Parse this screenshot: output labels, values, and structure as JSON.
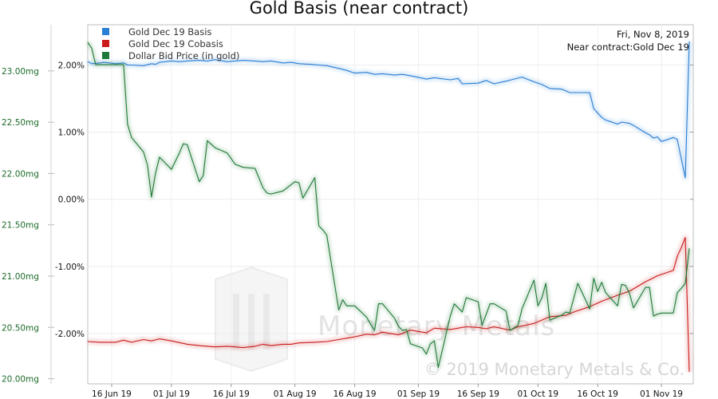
{
  "chart_data": {
    "type": "line",
    "title": "Gold Basis (near contract)",
    "date_label": "Fri, Nov 8, 2019",
    "contract_label": "Near contract:Gold Dec 19",
    "watermark": "Monetary Metals",
    "copyright": "© 2019 Monetary Metals & Co.",
    "x_axis": {
      "range": [
        "2019-06-10",
        "2019-11-09"
      ],
      "ticks": [
        "16 Jun 19",
        "01 Jul 19",
        "16 Jul 19",
        "01 Aug 19",
        "16 Aug 19",
        "01 Sep 19",
        "16 Sep 19",
        "01 Oct 19",
        "16 Oct 19",
        "01 Nov 19"
      ],
      "tick_dates": [
        "2019-06-16",
        "2019-07-01",
        "2019-07-16",
        "2019-08-01",
        "2019-08-16",
        "2019-09-01",
        "2019-09-16",
        "2019-10-01",
        "2019-10-16",
        "2019-11-01"
      ]
    },
    "y_left": {
      "unit": "%",
      "range": [
        -2.75,
        2.6
      ],
      "ticks": [
        2.0,
        1.0,
        0.0,
        -1.0,
        -2.0
      ],
      "tick_labels": [
        "2.00%",
        "1.00%",
        "0.00%",
        "-1.00%",
        "-2.00%"
      ],
      "color": "#111111"
    },
    "y_right": {
      "unit": "mg",
      "range": [
        19.95,
        23.45
      ],
      "ticks": [
        23.0,
        22.5,
        22.0,
        21.5,
        21.0,
        20.5,
        20.0
      ],
      "tick_labels": [
        "23.00mg",
        "22.50mg",
        "22.00mg",
        "21.50mg",
        "21.00mg",
        "20.50mg",
        "20.00mg"
      ],
      "color": "#1d6b2a"
    },
    "grid": true,
    "legend_position": "top-left",
    "series": [
      {
        "name": "Gold Dec 19 Basis",
        "color": "#2a7fd4",
        "axis": "left",
        "points": [
          [
            "2019-06-10",
            2.05
          ],
          [
            "2019-06-11",
            2.02
          ],
          [
            "2019-06-13",
            2.03
          ],
          [
            "2019-06-14",
            2.04
          ],
          [
            "2019-06-17",
            2.02
          ],
          [
            "2019-06-19",
            2.03
          ],
          [
            "2019-06-20",
            2.0
          ],
          [
            "2019-06-21",
            2.0
          ],
          [
            "2019-06-24",
            1.99
          ],
          [
            "2019-06-26",
            2.02
          ],
          [
            "2019-06-27",
            2.01
          ],
          [
            "2019-06-28",
            2.04
          ],
          [
            "2019-07-01",
            2.06
          ],
          [
            "2019-07-03",
            2.05
          ],
          [
            "2019-07-05",
            2.06
          ],
          [
            "2019-07-08",
            2.07
          ],
          [
            "2019-07-10",
            2.06
          ],
          [
            "2019-07-12",
            2.08
          ],
          [
            "2019-07-15",
            2.05
          ],
          [
            "2019-07-17",
            2.06
          ],
          [
            "2019-07-19",
            2.07
          ],
          [
            "2019-07-22",
            2.06
          ],
          [
            "2019-07-24",
            2.05
          ],
          [
            "2019-07-26",
            2.06
          ],
          [
            "2019-07-29",
            2.03
          ],
          [
            "2019-07-31",
            2.04
          ],
          [
            "2019-08-02",
            2.02
          ],
          [
            "2019-08-05",
            2.01
          ],
          [
            "2019-08-07",
            2.0
          ],
          [
            "2019-08-09",
            1.99
          ],
          [
            "2019-08-12",
            1.95
          ],
          [
            "2019-08-14",
            1.92
          ],
          [
            "2019-08-16",
            1.88
          ],
          [
            "2019-08-19",
            1.89
          ],
          [
            "2019-08-21",
            1.86
          ],
          [
            "2019-08-23",
            1.87
          ],
          [
            "2019-08-26",
            1.85
          ],
          [
            "2019-08-28",
            1.86
          ],
          [
            "2019-08-30",
            1.84
          ],
          [
            "2019-09-03",
            1.79
          ],
          [
            "2019-09-05",
            1.81
          ],
          [
            "2019-09-09",
            1.78
          ],
          [
            "2019-09-11",
            1.8
          ],
          [
            "2019-09-12",
            1.72
          ],
          [
            "2019-09-16",
            1.73
          ],
          [
            "2019-09-18",
            1.77
          ],
          [
            "2019-09-20",
            1.72
          ],
          [
            "2019-09-23",
            1.76
          ],
          [
            "2019-09-25",
            1.79
          ],
          [
            "2019-09-27",
            1.82
          ],
          [
            "2019-09-30",
            1.75
          ],
          [
            "2019-10-02",
            1.71
          ],
          [
            "2019-10-04",
            1.65
          ],
          [
            "2019-10-07",
            1.64
          ],
          [
            "2019-10-09",
            1.59
          ],
          [
            "2019-10-10",
            1.59
          ],
          [
            "2019-10-14",
            1.59
          ],
          [
            "2019-10-15",
            1.35
          ],
          [
            "2019-10-17",
            1.22
          ],
          [
            "2019-10-18",
            1.18
          ],
          [
            "2019-10-21",
            1.12
          ],
          [
            "2019-10-22",
            1.15
          ],
          [
            "2019-10-24",
            1.13
          ],
          [
            "2019-10-25",
            1.1
          ],
          [
            "2019-10-28",
            0.99
          ],
          [
            "2019-10-29",
            0.96
          ],
          [
            "2019-10-30",
            0.91
          ],
          [
            "2019-10-31",
            0.93
          ],
          [
            "2019-11-01",
            0.86
          ],
          [
            "2019-11-04",
            0.92
          ],
          [
            "2019-11-05",
            0.89
          ],
          [
            "2019-11-06",
            0.6
          ],
          [
            "2019-11-07",
            0.32
          ],
          [
            "2019-11-08",
            2.35
          ]
        ]
      },
      {
        "name": "Gold Dec 19 Cobasis",
        "color": "#cc1b1b",
        "axis": "left",
        "points": [
          [
            "2019-06-10",
            -2.12
          ],
          [
            "2019-06-13",
            -2.13
          ],
          [
            "2019-06-17",
            -2.13
          ],
          [
            "2019-06-19",
            -2.1
          ],
          [
            "2019-06-21",
            -2.13
          ],
          [
            "2019-06-24",
            -2.09
          ],
          [
            "2019-06-26",
            -2.11
          ],
          [
            "2019-06-28",
            -2.08
          ],
          [
            "2019-07-01",
            -2.11
          ],
          [
            "2019-07-05",
            -2.16
          ],
          [
            "2019-07-08",
            -2.18
          ],
          [
            "2019-07-10",
            -2.19
          ],
          [
            "2019-07-12",
            -2.2
          ],
          [
            "2019-07-15",
            -2.19
          ],
          [
            "2019-07-17",
            -2.2
          ],
          [
            "2019-07-19",
            -2.21
          ],
          [
            "2019-07-22",
            -2.19
          ],
          [
            "2019-07-24",
            -2.16
          ],
          [
            "2019-07-26",
            -2.18
          ],
          [
            "2019-07-29",
            -2.16
          ],
          [
            "2019-07-31",
            -2.16
          ],
          [
            "2019-08-02",
            -2.14
          ],
          [
            "2019-08-06",
            -2.13
          ],
          [
            "2019-08-09",
            -2.12
          ],
          [
            "2019-08-12",
            -2.09
          ],
          [
            "2019-08-14",
            -2.07
          ],
          [
            "2019-08-16",
            -2.05
          ],
          [
            "2019-08-19",
            -2.01
          ],
          [
            "2019-08-21",
            -2.02
          ],
          [
            "2019-08-23",
            -1.98
          ],
          [
            "2019-08-27",
            -2.02
          ],
          [
            "2019-08-30",
            -1.95
          ],
          [
            "2019-09-03",
            -1.99
          ],
          [
            "2019-09-05",
            -1.92
          ],
          [
            "2019-09-09",
            -1.94
          ],
          [
            "2019-09-11",
            -1.92
          ],
          [
            "2019-09-13",
            -1.9
          ],
          [
            "2019-09-16",
            -1.91
          ],
          [
            "2019-09-18",
            -1.93
          ],
          [
            "2019-09-20",
            -1.9
          ],
          [
            "2019-09-24",
            -1.95
          ],
          [
            "2019-09-26",
            -1.9
          ],
          [
            "2019-09-30",
            -1.85
          ],
          [
            "2019-10-02",
            -1.8
          ],
          [
            "2019-10-04",
            -1.75
          ],
          [
            "2019-10-08",
            -1.73
          ],
          [
            "2019-10-10",
            -1.68
          ],
          [
            "2019-10-14",
            -1.6
          ],
          [
            "2019-10-17",
            -1.52
          ],
          [
            "2019-10-21",
            -1.43
          ],
          [
            "2019-10-24",
            -1.37
          ],
          [
            "2019-10-28",
            -1.23
          ],
          [
            "2019-10-31",
            -1.14
          ],
          [
            "2019-11-01",
            -1.12
          ],
          [
            "2019-11-04",
            -1.06
          ],
          [
            "2019-11-05",
            -0.85
          ],
          [
            "2019-11-06",
            -0.72
          ],
          [
            "2019-11-07",
            -0.57
          ],
          [
            "2019-11-08",
            -2.57
          ]
        ]
      },
      {
        "name": "Dollar Bid Price (in gold)",
        "color": "#1d7a38",
        "axis": "right",
        "points": [
          [
            "2019-06-10",
            23.28
          ],
          [
            "2019-06-11",
            23.22
          ],
          [
            "2019-06-12",
            23.06
          ],
          [
            "2019-06-19",
            23.06
          ],
          [
            "2019-06-20",
            22.48
          ],
          [
            "2019-06-21",
            22.35
          ],
          [
            "2019-06-24",
            22.21
          ],
          [
            "2019-06-25",
            22.08
          ],
          [
            "2019-06-26",
            21.77
          ],
          [
            "2019-06-27",
            22.0
          ],
          [
            "2019-06-28",
            22.16
          ],
          [
            "2019-07-01",
            22.04
          ],
          [
            "2019-07-03",
            22.2
          ],
          [
            "2019-07-04",
            22.29
          ],
          [
            "2019-07-05",
            22.28
          ],
          [
            "2019-07-08",
            21.92
          ],
          [
            "2019-07-09",
            21.98
          ],
          [
            "2019-07-10",
            22.32
          ],
          [
            "2019-07-12",
            22.25
          ],
          [
            "2019-07-15",
            22.2
          ],
          [
            "2019-07-17",
            22.09
          ],
          [
            "2019-07-19",
            22.06
          ],
          [
            "2019-07-22",
            22.05
          ],
          [
            "2019-07-24",
            21.86
          ],
          [
            "2019-07-25",
            21.81
          ],
          [
            "2019-07-26",
            21.8
          ],
          [
            "2019-07-29",
            21.83
          ],
          [
            "2019-07-31",
            21.89
          ],
          [
            "2019-08-01",
            21.92
          ],
          [
            "2019-08-02",
            21.91
          ],
          [
            "2019-08-03",
            21.76
          ],
          [
            "2019-08-06",
            21.96
          ],
          [
            "2019-08-07",
            21.49
          ],
          [
            "2019-08-08",
            21.45
          ],
          [
            "2019-08-09",
            21.4
          ],
          [
            "2019-08-12",
            20.67
          ],
          [
            "2019-08-13",
            20.77
          ],
          [
            "2019-08-14",
            20.71
          ],
          [
            "2019-08-16",
            20.71
          ],
          [
            "2019-08-19",
            20.6
          ],
          [
            "2019-08-20",
            20.53
          ],
          [
            "2019-08-21",
            20.47
          ],
          [
            "2019-08-22",
            20.73
          ],
          [
            "2019-08-23",
            20.73
          ],
          [
            "2019-08-26",
            20.59
          ],
          [
            "2019-08-27",
            20.51
          ],
          [
            "2019-08-28",
            20.47
          ],
          [
            "2019-08-29",
            20.48
          ],
          [
            "2019-08-30",
            20.34
          ],
          [
            "2019-09-02",
            20.3
          ],
          [
            "2019-09-03",
            20.24
          ],
          [
            "2019-09-04",
            20.34
          ],
          [
            "2019-09-05",
            20.37
          ],
          [
            "2019-09-06",
            20.11
          ],
          [
            "2019-09-09",
            20.61
          ],
          [
            "2019-09-10",
            20.73
          ],
          [
            "2019-09-12",
            20.65
          ],
          [
            "2019-09-13",
            20.79
          ],
          [
            "2019-09-16",
            20.75
          ],
          [
            "2019-09-17",
            20.52
          ],
          [
            "2019-09-19",
            20.73
          ],
          [
            "2019-09-20",
            20.73
          ],
          [
            "2019-09-23",
            20.66
          ],
          [
            "2019-09-24",
            20.47
          ],
          [
            "2019-09-26",
            20.52
          ],
          [
            "2019-09-27",
            20.68
          ],
          [
            "2019-09-30",
            20.96
          ],
          [
            "2019-10-01",
            20.71
          ],
          [
            "2019-10-02",
            20.79
          ],
          [
            "2019-10-03",
            20.93
          ],
          [
            "2019-10-04",
            20.57
          ],
          [
            "2019-10-07",
            20.62
          ],
          [
            "2019-10-08",
            20.65
          ],
          [
            "2019-10-09",
            20.64
          ],
          [
            "2019-10-11",
            20.93
          ],
          [
            "2019-10-14",
            20.68
          ],
          [
            "2019-10-15",
            20.98
          ],
          [
            "2019-10-16",
            20.85
          ],
          [
            "2019-10-17",
            20.94
          ],
          [
            "2019-10-18",
            20.84
          ],
          [
            "2019-10-21",
            20.71
          ],
          [
            "2019-10-22",
            20.92
          ],
          [
            "2019-10-23",
            20.91
          ],
          [
            "2019-10-24",
            20.83
          ],
          [
            "2019-10-25",
            20.69
          ],
          [
            "2019-10-28",
            20.89
          ],
          [
            "2019-10-29",
            20.89
          ],
          [
            "2019-10-30",
            20.61
          ],
          [
            "2019-10-31",
            20.63
          ],
          [
            "2019-11-01",
            20.64
          ],
          [
            "2019-11-04",
            20.64
          ],
          [
            "2019-11-05",
            20.84
          ],
          [
            "2019-11-06",
            20.88
          ],
          [
            "2019-11-07",
            20.93
          ],
          [
            "2019-11-08",
            21.27
          ]
        ]
      }
    ]
  }
}
